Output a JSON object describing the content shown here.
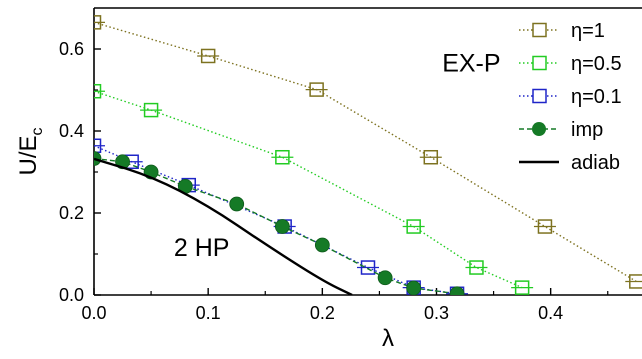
{
  "chart_data": {
    "type": "scatter",
    "xlabel": "λ",
    "ylabel": "U/E",
    "ylabel_sub": "c",
    "xlim": [
      0.0,
      0.48
    ],
    "ylim": [
      0.0,
      0.7
    ],
    "xticks": [
      {
        "v": 0.0,
        "label": "0.0"
      },
      {
        "v": 0.1,
        "label": "0.1"
      },
      {
        "v": 0.2,
        "label": "0.2"
      },
      {
        "v": 0.3,
        "label": "0.3"
      },
      {
        "v": 0.4,
        "label": "0.4"
      }
    ],
    "yticks": [
      {
        "v": 0.0,
        "label": "0.0"
      },
      {
        "v": 0.2,
        "label": "0.2"
      },
      {
        "v": 0.4,
        "label": "0.4"
      },
      {
        "v": 0.6,
        "label": "0.6"
      }
    ],
    "grid": false,
    "legend_position": "top-right",
    "annotations": [
      {
        "text": "EX-P",
        "x": 0.305,
        "y": 0.545
      },
      {
        "text": "2 HP",
        "x": 0.07,
        "y": 0.095
      }
    ],
    "series": [
      {
        "name": "η=1",
        "marker": "open-square",
        "color": "#7d7220",
        "line": "dotted",
        "x": [
          0.0,
          0.1,
          0.195,
          0.295,
          0.395,
          0.475
        ],
        "y": [
          0.665,
          0.583,
          0.501,
          0.336,
          0.167,
          0.033
        ]
      },
      {
        "name": "η=0.5",
        "marker": "open-square",
        "color": "#22cc22",
        "line": "dotted",
        "x": [
          0.0,
          0.05,
          0.165,
          0.28,
          0.335,
          0.375
        ],
        "y": [
          0.497,
          0.451,
          0.336,
          0.167,
          0.067,
          0.018
        ]
      },
      {
        "name": "η=0.1",
        "marker": "open-square",
        "color": "#1f25c8",
        "line": "dotted",
        "x": [
          0.0,
          0.033,
          0.083,
          0.167,
          0.24,
          0.28,
          0.318
        ],
        "y": [
          0.364,
          0.325,
          0.268,
          0.167,
          0.067,
          0.018,
          0.003
        ]
      },
      {
        "name": "imp",
        "marker": "filled-circle",
        "color": "#157a26",
        "line": "dashed",
        "x": [
          0.0,
          0.025,
          0.05,
          0.08,
          0.125,
          0.165,
          0.2,
          0.255,
          0.28,
          0.318
        ],
        "y": [
          0.333,
          0.325,
          0.3,
          0.265,
          0.222,
          0.167,
          0.122,
          0.042,
          0.017,
          0.003
        ]
      },
      {
        "name": "adiab",
        "marker": "none",
        "color": "#000000",
        "line": "solid",
        "x": [
          0.0,
          0.05,
          0.1,
          0.15,
          0.2,
          0.226
        ],
        "y": [
          0.332,
          0.29,
          0.218,
          0.124,
          0.035,
          0.0
        ]
      }
    ]
  }
}
